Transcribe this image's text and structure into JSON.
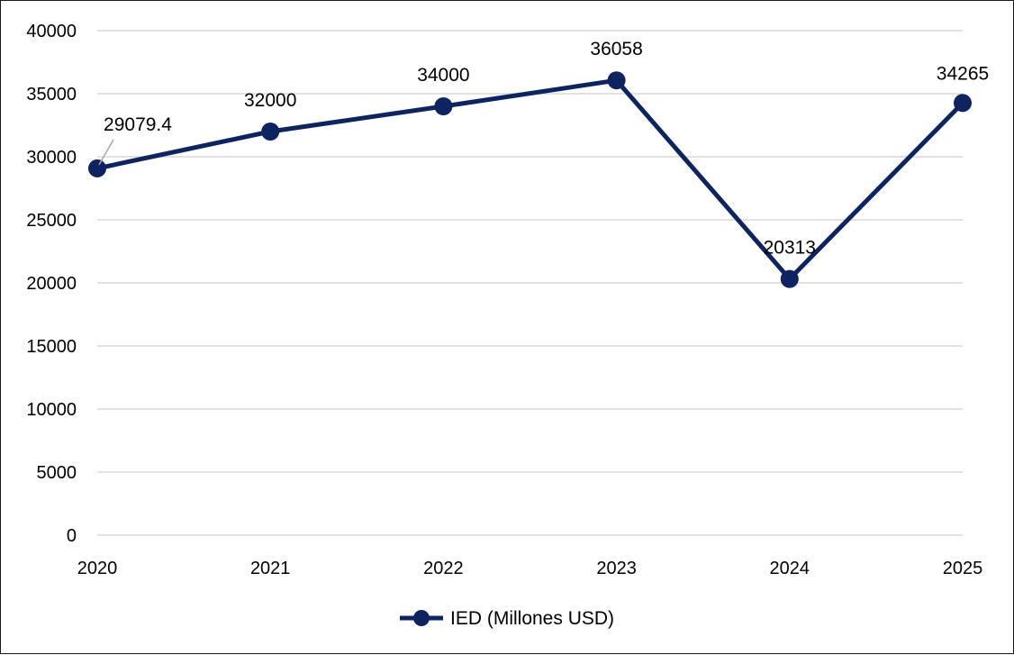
{
  "chart_data": {
    "type": "line",
    "title": "",
    "xlabel": "",
    "ylabel": "",
    "x": [
      "2020",
      "2021",
      "2022",
      "2023",
      "2024",
      "2025"
    ],
    "series": [
      {
        "name": "IED (Millones USD)",
        "values": [
          29079.4,
          32000,
          34000,
          36058,
          20313,
          34265
        ],
        "labels": [
          "29079.4",
          "32000",
          "34000",
          "36058",
          "20313",
          "34265"
        ],
        "color": "#0e2460"
      }
    ],
    "ylim": [
      0,
      40000
    ],
    "yticks": [
      0,
      5000,
      10000,
      15000,
      20000,
      25000,
      30000,
      35000,
      40000
    ],
    "grid": true,
    "legend": "bottom",
    "colors": {
      "line": "#0e2460",
      "grid": "#d9d9d9",
      "leader": "#a6a6a6"
    }
  }
}
